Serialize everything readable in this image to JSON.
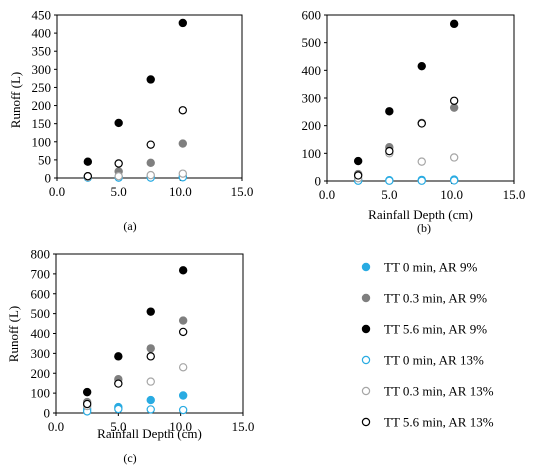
{
  "chart_data": [
    {
      "type": "scatter",
      "panel_label": "(a)",
      "xlabel": "",
      "ylabel": "Runoff (L)",
      "xlim": [
        0,
        15
      ],
      "ylim": [
        0,
        450
      ],
      "xticks": [
        "0.0",
        "5.0",
        "10.0",
        "15.0"
      ],
      "yticks": [
        "0",
        "50",
        "100",
        "150",
        "200",
        "250",
        "300",
        "350",
        "400",
        "450"
      ],
      "series": [
        {
          "key": "tt0_ar9",
          "x": [
            2.5,
            5.0,
            7.6,
            10.2
          ],
          "y": [
            2,
            2,
            2,
            4
          ]
        },
        {
          "key": "tt03_ar9",
          "x": [
            2.5,
            5.0,
            7.6,
            10.2
          ],
          "y": [
            5,
            18,
            42,
            95
          ]
        },
        {
          "key": "tt56_ar9",
          "x": [
            2.5,
            5.0,
            7.6,
            10.2
          ],
          "y": [
            45,
            152,
            272,
            428
          ]
        },
        {
          "key": "tt0_ar13",
          "x": [
            2.5,
            5.0,
            7.6,
            10.2
          ],
          "y": [
            1,
            1,
            1,
            2
          ]
        },
        {
          "key": "tt03_ar13",
          "x": [
            2.5,
            5.0,
            7.6,
            10.2
          ],
          "y": [
            3,
            5,
            8,
            12
          ]
        },
        {
          "key": "tt56_ar13",
          "x": [
            2.5,
            5.0,
            7.6,
            10.2
          ],
          "y": [
            5,
            40,
            92,
            187
          ]
        }
      ]
    },
    {
      "type": "scatter",
      "panel_label": "(b)",
      "xlabel": "Rainfall Depth (cm)",
      "ylabel": "",
      "xlim": [
        0,
        15
      ],
      "ylim": [
        0,
        600
      ],
      "xticks": [
        "0.0",
        "5.0",
        "10.0",
        "15.0"
      ],
      "yticks": [
        "0",
        "100",
        "200",
        "300",
        "400",
        "500",
        "600"
      ],
      "series": [
        {
          "key": "tt0_ar9",
          "x": [
            2.5,
            5.0,
            7.6,
            10.2
          ],
          "y": [
            2,
            3,
            4,
            5
          ]
        },
        {
          "key": "tt03_ar9",
          "x": [
            2.5,
            5.0,
            7.6,
            10.2
          ],
          "y": [
            25,
            122,
            210,
            265
          ]
        },
        {
          "key": "tt56_ar9",
          "x": [
            2.5,
            5.0,
            7.6,
            10.2
          ],
          "y": [
            72,
            252,
            415,
            568
          ]
        },
        {
          "key": "tt0_ar13",
          "x": [
            2.5,
            5.0,
            7.6,
            10.2
          ],
          "y": [
            1,
            1,
            1,
            2
          ]
        },
        {
          "key": "tt03_ar13",
          "x": [
            2.5,
            5.0,
            7.6,
            10.2
          ],
          "y": [
            10,
            100,
            70,
            85
          ]
        },
        {
          "key": "tt56_ar13",
          "x": [
            2.5,
            5.0,
            7.6,
            10.2
          ],
          "y": [
            20,
            108,
            208,
            290
          ]
        }
      ]
    },
    {
      "type": "scatter",
      "panel_label": "(c)",
      "xlabel": "Rainfall Depth (cm)",
      "ylabel": "Runoff (L)",
      "xlim": [
        0,
        15
      ],
      "ylim": [
        0,
        800
      ],
      "xticks": [
        "0.0",
        "5.0",
        "10.0",
        "15.0"
      ],
      "yticks": [
        "0",
        "100",
        "200",
        "300",
        "400",
        "500",
        "600",
        "700",
        "800"
      ],
      "series": [
        {
          "key": "tt0_ar9",
          "x": [
            2.5,
            5.0,
            7.6,
            10.2
          ],
          "y": [
            20,
            30,
            65,
            88
          ]
        },
        {
          "key": "tt03_ar9",
          "x": [
            2.5,
            5.0,
            7.6,
            10.2
          ],
          "y": [
            55,
            170,
            325,
            465
          ]
        },
        {
          "key": "tt56_ar9",
          "x": [
            2.5,
            5.0,
            7.6,
            10.2
          ],
          "y": [
            105,
            285,
            510,
            718
          ]
        },
        {
          "key": "tt0_ar13",
          "x": [
            2.5,
            5.0,
            7.6,
            10.2
          ],
          "y": [
            8,
            20,
            18,
            15
          ]
        },
        {
          "key": "tt03_ar13",
          "x": [
            2.5,
            5.0,
            7.6,
            10.2
          ],
          "y": [
            35,
            150,
            158,
            230
          ]
        },
        {
          "key": "tt56_ar13",
          "x": [
            2.5,
            5.0,
            7.6,
            10.2
          ],
          "y": [
            45,
            148,
            285,
            408
          ]
        }
      ]
    }
  ],
  "legend": [
    {
      "key": "tt0_ar9",
      "label": "TT 0 min, AR 9%",
      "fill": "#29abe2",
      "stroke": "#29abe2"
    },
    {
      "key": "tt03_ar9",
      "label": "TT 0.3 min, AR 9%",
      "fill": "#7f7f7f",
      "stroke": "#7f7f7f"
    },
    {
      "key": "tt56_ar9",
      "label": "TT 5.6 min, AR 9%",
      "fill": "#000000",
      "stroke": "#000000"
    },
    {
      "key": "tt0_ar13",
      "label": "TT 0 min, AR 13%",
      "fill": "#ffffff",
      "stroke": "#29abe2"
    },
    {
      "key": "tt03_ar13",
      "label": "TT 0.3 min, AR 13%",
      "fill": "#ffffff",
      "stroke": "#a6a6a6"
    },
    {
      "key": "tt56_ar13",
      "label": "TT 5.6 min, AR 13%",
      "fill": "#ffffff",
      "stroke": "#000000"
    }
  ]
}
